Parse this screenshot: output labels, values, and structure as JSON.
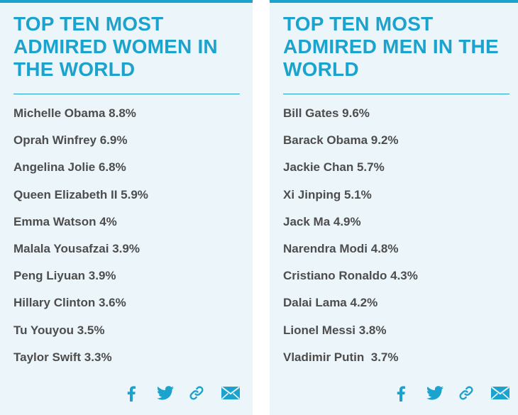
{
  "women_card": {
    "title": "TOP TEN MOST ADMIRED WOMEN IN THE WORLD",
    "items": [
      "Michelle Obama 8.8%",
      "Oprah Winfrey 6.9%",
      "Angelina Jolie 6.8%",
      "Queen Elizabeth II 5.9%",
      "Emma Watson 4%",
      "Malala Yousafzai 3.9%",
      "Peng Liyuan 3.9%",
      "Hillary Clinton 3.6%",
      "Tu Youyou 3.5%",
      "Taylor Swift 3.3%"
    ]
  },
  "men_card": {
    "title": "TOP TEN MOST ADMIRED MEN IN THE WORLD",
    "items": [
      "Bill Gates 9.6%",
      "Barack Obama 9.2%",
      "Jackie Chan 5.7%",
      "Xi Jinping 5.1%",
      "Jack Ma 4.9%",
      "Narendra Modi 4.8%",
      "Cristiano Ronaldo 4.3%",
      "Dalai Lama 4.2%",
      "Lionel Messi 3.8%",
      "Vladimir Putin  3.7%"
    ]
  },
  "share_icons": [
    "facebook-icon",
    "twitter-icon",
    "link-icon",
    "email-icon"
  ],
  "colors": {
    "accent": "#1ba2cd",
    "card_background": "#ebf5fa",
    "text": "#4d4d4d"
  }
}
